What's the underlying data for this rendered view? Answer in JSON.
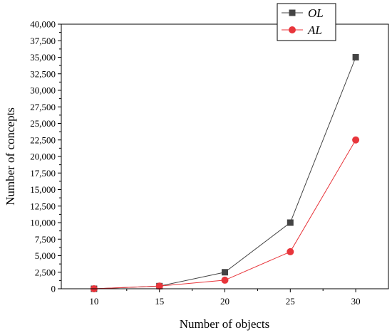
{
  "chart_data": {
    "type": "line",
    "x": [
      10,
      15,
      20,
      25,
      30
    ],
    "xlabel": "Number of objects",
    "ylabel": "Number of concepts",
    "xlim": [
      7.5,
      32.5
    ],
    "ylim": [
      0,
      40000
    ],
    "x_ticks": [
      "10",
      "15",
      "20",
      "25",
      "30"
    ],
    "y_ticks": [
      "0",
      "2,500",
      "5,000",
      "7,500",
      "10,000",
      "12,500",
      "15,000",
      "17,500",
      "20,000",
      "22,500",
      "25,000",
      "27,500",
      "30,000",
      "32,500",
      "35,000",
      "37,500",
      "40,000"
    ],
    "grid": false,
    "legend_position": "top-right",
    "series": [
      {
        "name": "OL",
        "values": [
          0,
          400,
          2500,
          10000,
          35000
        ],
        "color": "#444444",
        "marker": "square"
      },
      {
        "name": "AL",
        "values": [
          0,
          400,
          1300,
          5600,
          22500
        ],
        "color": "#e8353b",
        "marker": "circle"
      }
    ]
  }
}
